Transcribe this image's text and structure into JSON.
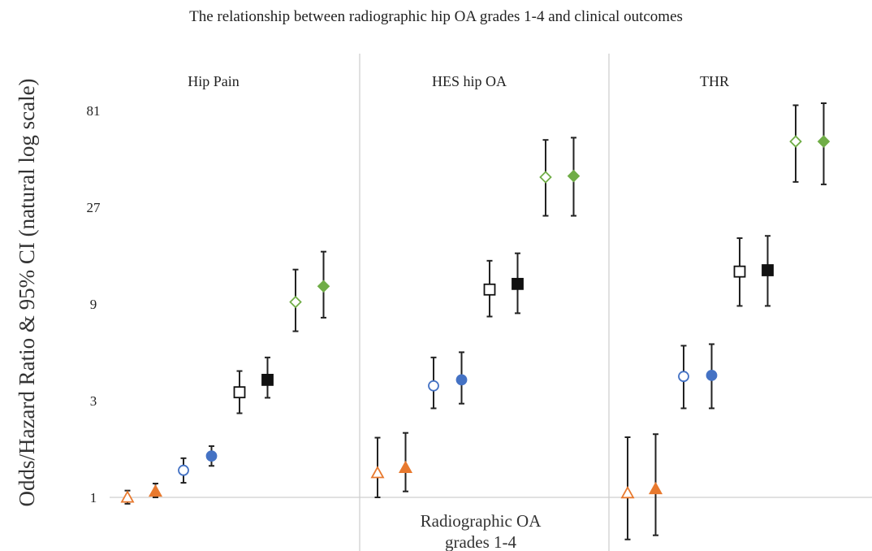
{
  "chart_data": {
    "type": "scatter",
    "title": "The relationship between radiographic hip OA grades 1-4 and clinical outcomes",
    "ylabel": "Odds/Hazard Ratio & 95% CI (natural log scale)",
    "xlabel": "Radiographic OA grades 1-4",
    "y_scale": "log",
    "y_ticks": [
      "1",
      "3",
      "9",
      "27",
      "81"
    ],
    "ylim": [
      0.91,
      120
    ],
    "grid": false,
    "legend": "none",
    "panels": [
      {
        "title": "Hip Pain",
        "points": [
          {
            "grade": 1,
            "filled": false,
            "shape": "triangle",
            "color": "#e8792e",
            "value": 1.0,
            "ci": [
              0.93,
              1.08
            ]
          },
          {
            "grade": 1,
            "filled": true,
            "shape": "triangle",
            "color": "#e8792e",
            "value": 1.07,
            "ci": [
              1.0,
              1.17
            ]
          },
          {
            "grade": 2,
            "filled": false,
            "shape": "circle",
            "color": "#4472c4",
            "value": 1.36,
            "ci": [
              1.18,
              1.56
            ]
          },
          {
            "grade": 2,
            "filled": true,
            "shape": "circle",
            "color": "#4472c4",
            "value": 1.6,
            "ci": [
              1.43,
              1.79
            ]
          },
          {
            "grade": 3,
            "filled": false,
            "shape": "square",
            "color": "#111111",
            "value": 3.3,
            "ci": [
              2.6,
              4.2
            ]
          },
          {
            "grade": 3,
            "filled": true,
            "shape": "square",
            "color": "#111111",
            "value": 3.8,
            "ci": [
              3.1,
              4.9
            ]
          },
          {
            "grade": 4,
            "filled": false,
            "shape": "diamond",
            "color": "#70ad47",
            "value": 9.2,
            "ci": [
              6.6,
              13.3
            ]
          },
          {
            "grade": 4,
            "filled": true,
            "shape": "diamond",
            "color": "#70ad47",
            "value": 11.0,
            "ci": [
              7.7,
              16.3
            ]
          }
        ]
      },
      {
        "title": "HES hip OA",
        "points": [
          {
            "grade": 1,
            "filled": false,
            "shape": "triangle",
            "color": "#e8792e",
            "value": 1.32,
            "ci": [
              1.0,
              1.97
            ]
          },
          {
            "grade": 1,
            "filled": true,
            "shape": "triangle",
            "color": "#e8792e",
            "value": 1.4,
            "ci": [
              1.07,
              2.08
            ]
          },
          {
            "grade": 2,
            "filled": false,
            "shape": "circle",
            "color": "#4472c4",
            "value": 3.55,
            "ci": [
              2.75,
              4.9
            ]
          },
          {
            "grade": 2,
            "filled": true,
            "shape": "circle",
            "color": "#4472c4",
            "value": 3.8,
            "ci": [
              2.9,
              5.2
            ]
          },
          {
            "grade": 3,
            "filled": false,
            "shape": "square",
            "color": "#111111",
            "value": 10.6,
            "ci": [
              7.8,
              14.7
            ]
          },
          {
            "grade": 3,
            "filled": true,
            "shape": "square",
            "color": "#111111",
            "value": 11.3,
            "ci": [
              8.1,
              16.0
            ]
          },
          {
            "grade": 4,
            "filled": false,
            "shape": "diamond",
            "color": "#70ad47",
            "value": 38.0,
            "ci": [
              24.5,
              58.0
            ]
          },
          {
            "grade": 4,
            "filled": true,
            "shape": "diamond",
            "color": "#70ad47",
            "value": 38.5,
            "ci": [
              24.5,
              59.5
            ]
          }
        ]
      },
      {
        "title": "THR",
        "points": [
          {
            "grade": 1,
            "filled": false,
            "shape": "triangle",
            "color": "#e8792e",
            "value": 1.05,
            "ci": [
              0.62,
              1.98
            ]
          },
          {
            "grade": 1,
            "filled": true,
            "shape": "triangle",
            "color": "#e8792e",
            "value": 1.1,
            "ci": [
              0.65,
              2.05
            ]
          },
          {
            "grade": 2,
            "filled": false,
            "shape": "circle",
            "color": "#4472c4",
            "value": 3.95,
            "ci": [
              2.75,
              5.6
            ]
          },
          {
            "grade": 2,
            "filled": true,
            "shape": "circle",
            "color": "#4472c4",
            "value": 4.0,
            "ci": [
              2.75,
              5.7
            ]
          },
          {
            "grade": 3,
            "filled": false,
            "shape": "square",
            "color": "#111111",
            "value": 13.0,
            "ci": [
              8.8,
              19.0
            ]
          },
          {
            "grade": 3,
            "filled": true,
            "shape": "square",
            "color": "#111111",
            "value": 13.2,
            "ci": [
              8.8,
              19.5
            ]
          },
          {
            "grade": 4,
            "filled": false,
            "shape": "diamond",
            "color": "#70ad47",
            "value": 57.0,
            "ci": [
              36.0,
              86.0
            ]
          },
          {
            "grade": 4,
            "filled": true,
            "shape": "diamond",
            "color": "#70ad47",
            "value": 57.0,
            "ci": [
              35.0,
              88.0
            ]
          }
        ]
      }
    ]
  }
}
